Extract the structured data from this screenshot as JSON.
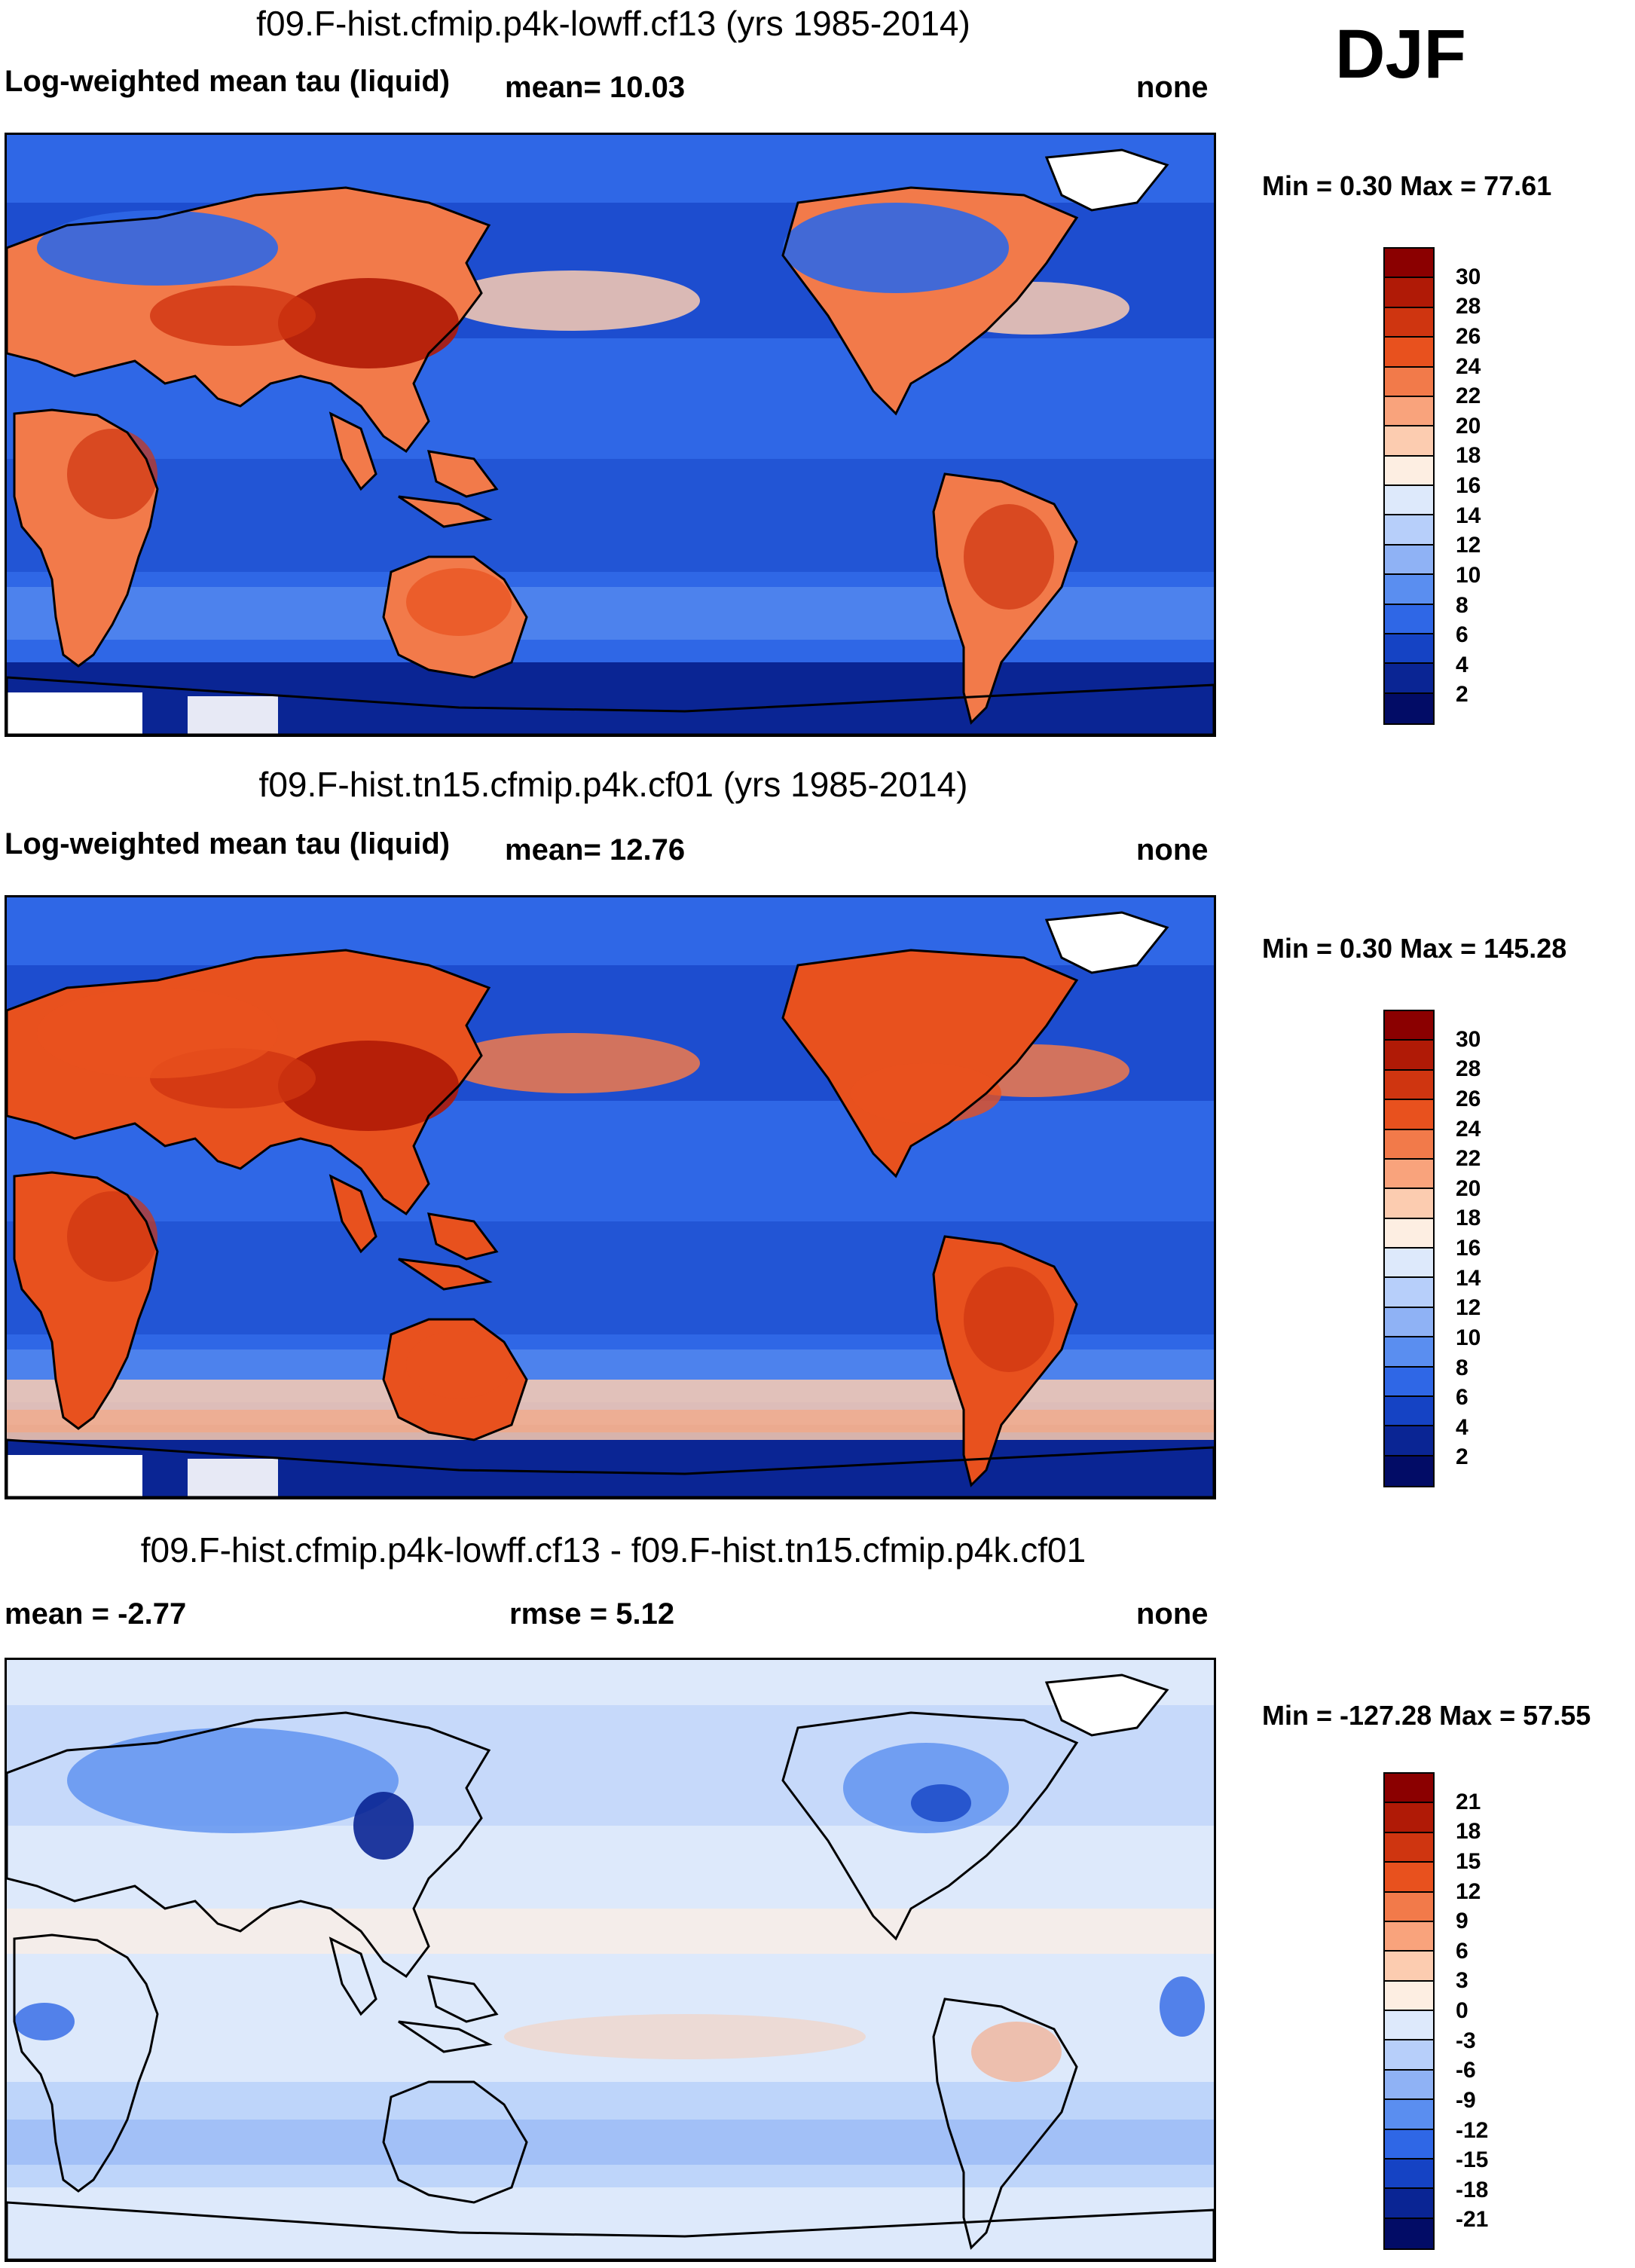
{
  "season": "DJF",
  "panels": [
    {
      "title": "f09.F-hist.cfmip.p4k-lowff.cf13 (yrs 1985-2014)",
      "left_label": "Log-weighted mean tau (liquid)",
      "mean_label": "mean=  10.03",
      "right_label": "none",
      "minmax": "Min =   0.30 Max =  77.61",
      "colorbar_labels": [
        "30",
        "28",
        "26",
        "24",
        "22",
        "20",
        "18",
        "16",
        "14",
        "12",
        "10",
        "8",
        "6",
        "4",
        "2"
      ],
      "colorbar_colors": [
        "#8b0000",
        "#b01a06",
        "#cf3510",
        "#e8511e",
        "#f27a4a",
        "#f9a37c",
        "#fcccb0",
        "#fdeee2",
        "#dde9fb",
        "#b7cffa",
        "#8fb2f5",
        "#5a8ef0",
        "#2f67e6",
        "#1543c4",
        "#0a2594",
        "#020c66"
      ],
      "map_style": "base"
    },
    {
      "title": "f09.F-hist.tn15.cfmip.p4k.cf01 (yrs 1985-2014)",
      "left_label": "Log-weighted mean tau (liquid)",
      "mean_label": "mean=  12.76",
      "right_label": "none",
      "minmax": "Min =   0.30 Max = 145.28",
      "colorbar_labels": [
        "30",
        "28",
        "26",
        "24",
        "22",
        "20",
        "18",
        "16",
        "14",
        "12",
        "10",
        "8",
        "6",
        "4",
        "2"
      ],
      "colorbar_colors": [
        "#8b0000",
        "#b01a06",
        "#cf3510",
        "#e8511e",
        "#f27a4a",
        "#f9a37c",
        "#fcccb0",
        "#fdeee2",
        "#dde9fb",
        "#b7cffa",
        "#8fb2f5",
        "#5a8ef0",
        "#2f67e6",
        "#1543c4",
        "#0a2594",
        "#020c66"
      ],
      "map_style": "ref"
    },
    {
      "title": "f09.F-hist.cfmip.p4k-lowff.cf13 - f09.F-hist.tn15.cfmip.p4k.cf01",
      "left_label": "mean =  -2.77",
      "mean_label": "rmse =   5.12",
      "right_label": "none",
      "minmax": "Min = -127.28 Max =  57.55",
      "colorbar_labels": [
        "21",
        "18",
        "15",
        "12",
        "9",
        "6",
        "3",
        "0",
        "-3",
        "-6",
        "-9",
        "-12",
        "-15",
        "-18",
        "-21"
      ],
      "colorbar_colors": [
        "#8b0000",
        "#b01a06",
        "#cf3510",
        "#e8511e",
        "#f27a4a",
        "#f9a37c",
        "#fcccb0",
        "#fdeee2",
        "#dde9fb",
        "#b7cffa",
        "#8fb2f5",
        "#5a8ef0",
        "#2f67e6",
        "#1543c4",
        "#0a2594",
        "#020c66"
      ],
      "map_style": "diff"
    }
  ]
}
